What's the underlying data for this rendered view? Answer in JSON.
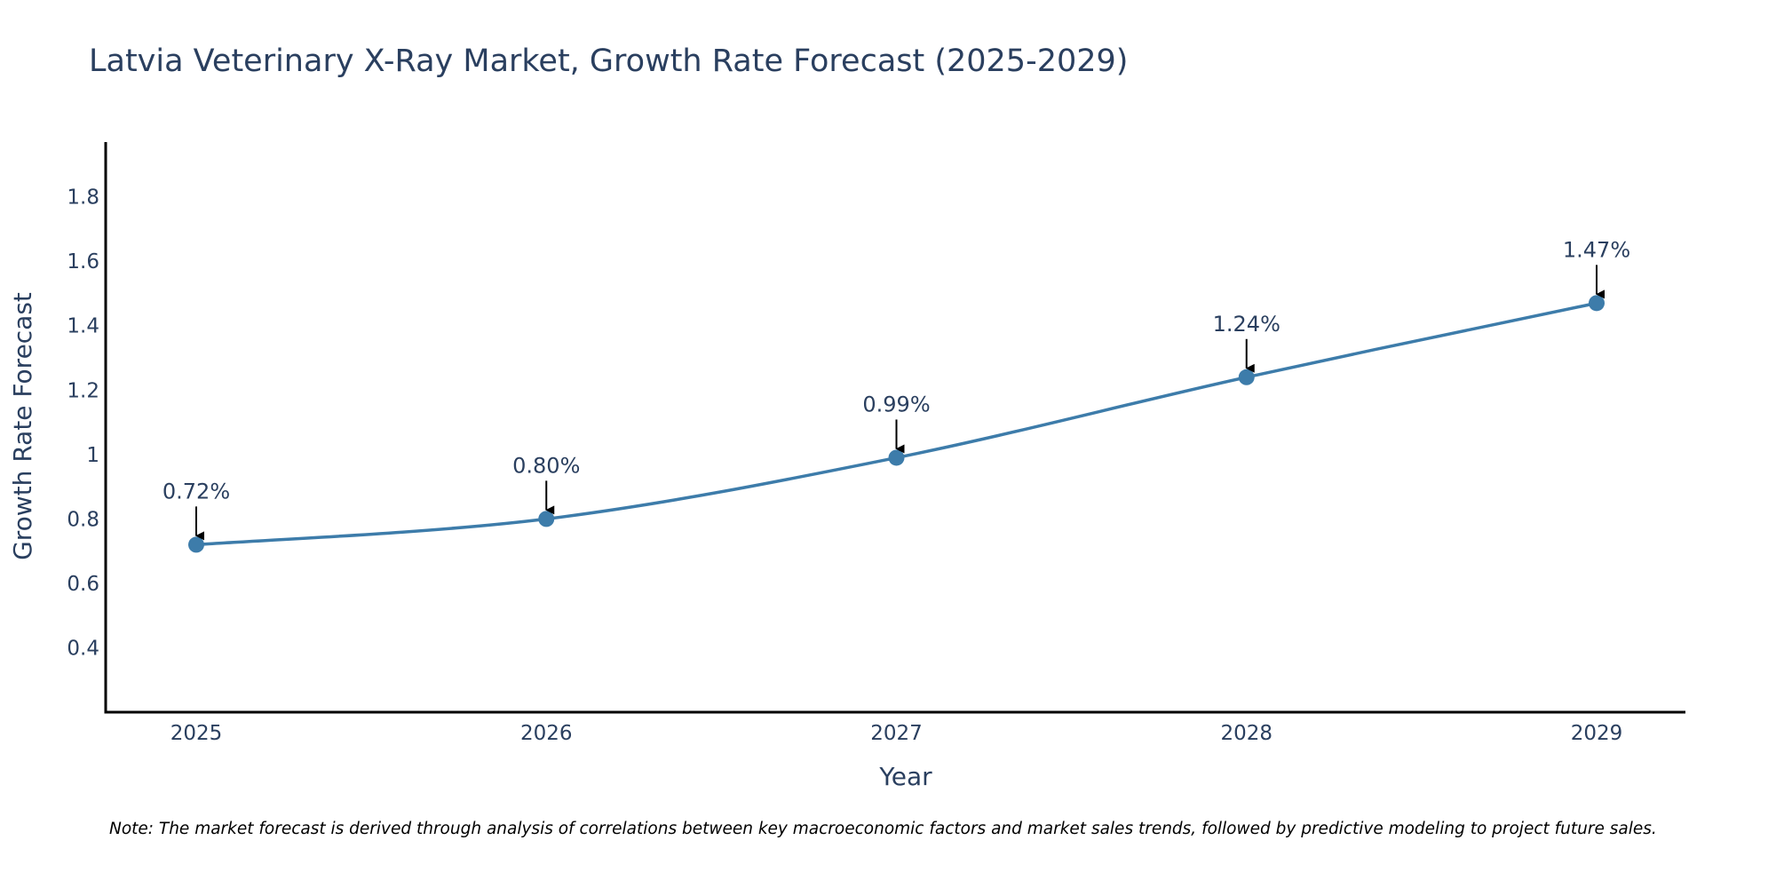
{
  "chart_data": {
    "type": "line",
    "title": "Latvia Veterinary X-Ray Market, Growth Rate Forecast (2025-2029)",
    "xlabel": "Year",
    "ylabel": "Growth Rate Forecast",
    "categories": [
      "2025",
      "2026",
      "2027",
      "2028",
      "2029"
    ],
    "series": [
      {
        "name": "Growth Rate Forecast",
        "values": [
          0.72,
          0.8,
          0.99,
          1.24,
          1.47
        ],
        "labels": [
          "0.72%",
          "0.80%",
          "0.99%",
          "1.24%",
          "1.47%"
        ]
      }
    ],
    "ylim": [
      0.2,
      1.97
    ],
    "yticks": [
      0.4,
      0.6,
      0.8,
      1.0,
      1.2,
      1.4,
      1.6,
      1.8
    ],
    "ytick_labels": [
      "0.4",
      "0.6",
      "0.8",
      "1",
      "1.2",
      "1.4",
      "1.6",
      "1.8"
    ],
    "grid": false,
    "line_shape": "spline",
    "colors": {
      "line": "#3d7caa",
      "marker": "#3d7caa",
      "axis": "#000000",
      "text": "#2a3f5f",
      "arrow": "#000000"
    }
  },
  "note": "Note: The market forecast is derived through analysis of correlations between key macroeconomic factors and market sales trends, followed by predictive modeling to project future sales."
}
